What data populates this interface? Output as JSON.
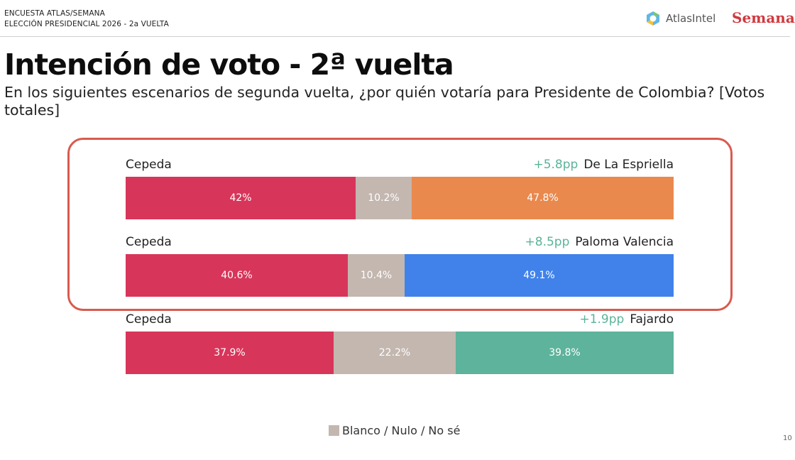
{
  "header": {
    "line1": "ENCUESTA ATLAS/SEMANA",
    "line2": "ELECCIÓN PRESIDENCIAL 2026 - 2a VUELTA",
    "atlas_label": "AtlasIntel",
    "semana_label": "Semana"
  },
  "title": "Intención de voto - 2ª vuelta",
  "subtitle": "En los siguientes escenarios de segunda vuelta, ¿por quién votaría para Presidente de Colombia? [Votos totales]",
  "colors": {
    "cepeda": "#d8355a",
    "blank": "#c3b7b0",
    "de_la_espriella": "#e9894d",
    "paloma_valencia": "#4082ea",
    "fajardo": "#5db39b",
    "diff_text": "#5bb39a",
    "highlight": "#d95a4e"
  },
  "chart_data": {
    "type": "bar",
    "stacked": true,
    "orientation": "horizontal",
    "scale_max": 100,
    "scenarios": [
      {
        "left_name": "Cepeda",
        "right_name": "De La Espriella",
        "diff": "+5.8pp",
        "segments": [
          {
            "key": "cepeda",
            "value": 42,
            "label": "42%"
          },
          {
            "key": "blank",
            "value": 10.2,
            "label": "10.2%"
          },
          {
            "key": "de_la_espriella",
            "value": 47.8,
            "label": "47.8%"
          }
        ]
      },
      {
        "left_name": "Cepeda",
        "right_name": "Paloma Valencia",
        "diff": "+8.5pp",
        "segments": [
          {
            "key": "cepeda",
            "value": 40.6,
            "label": "40.6%"
          },
          {
            "key": "blank",
            "value": 10.4,
            "label": "10.4%"
          },
          {
            "key": "paloma_valencia",
            "value": 49.1,
            "label": "49.1%"
          }
        ]
      },
      {
        "left_name": "Cepeda",
        "right_name": "Fajardo",
        "diff": "+1.9pp",
        "segments": [
          {
            "key": "cepeda",
            "value": 37.9,
            "label": "37.9%"
          },
          {
            "key": "blank",
            "value": 22.2,
            "label": "22.2%"
          },
          {
            "key": "fajardo",
            "value": 39.8,
            "label": "39.8%"
          }
        ]
      }
    ],
    "legend": [
      {
        "label": "Blanco / Nulo / No sé",
        "key": "blank"
      }
    ]
  },
  "page_number": "10"
}
